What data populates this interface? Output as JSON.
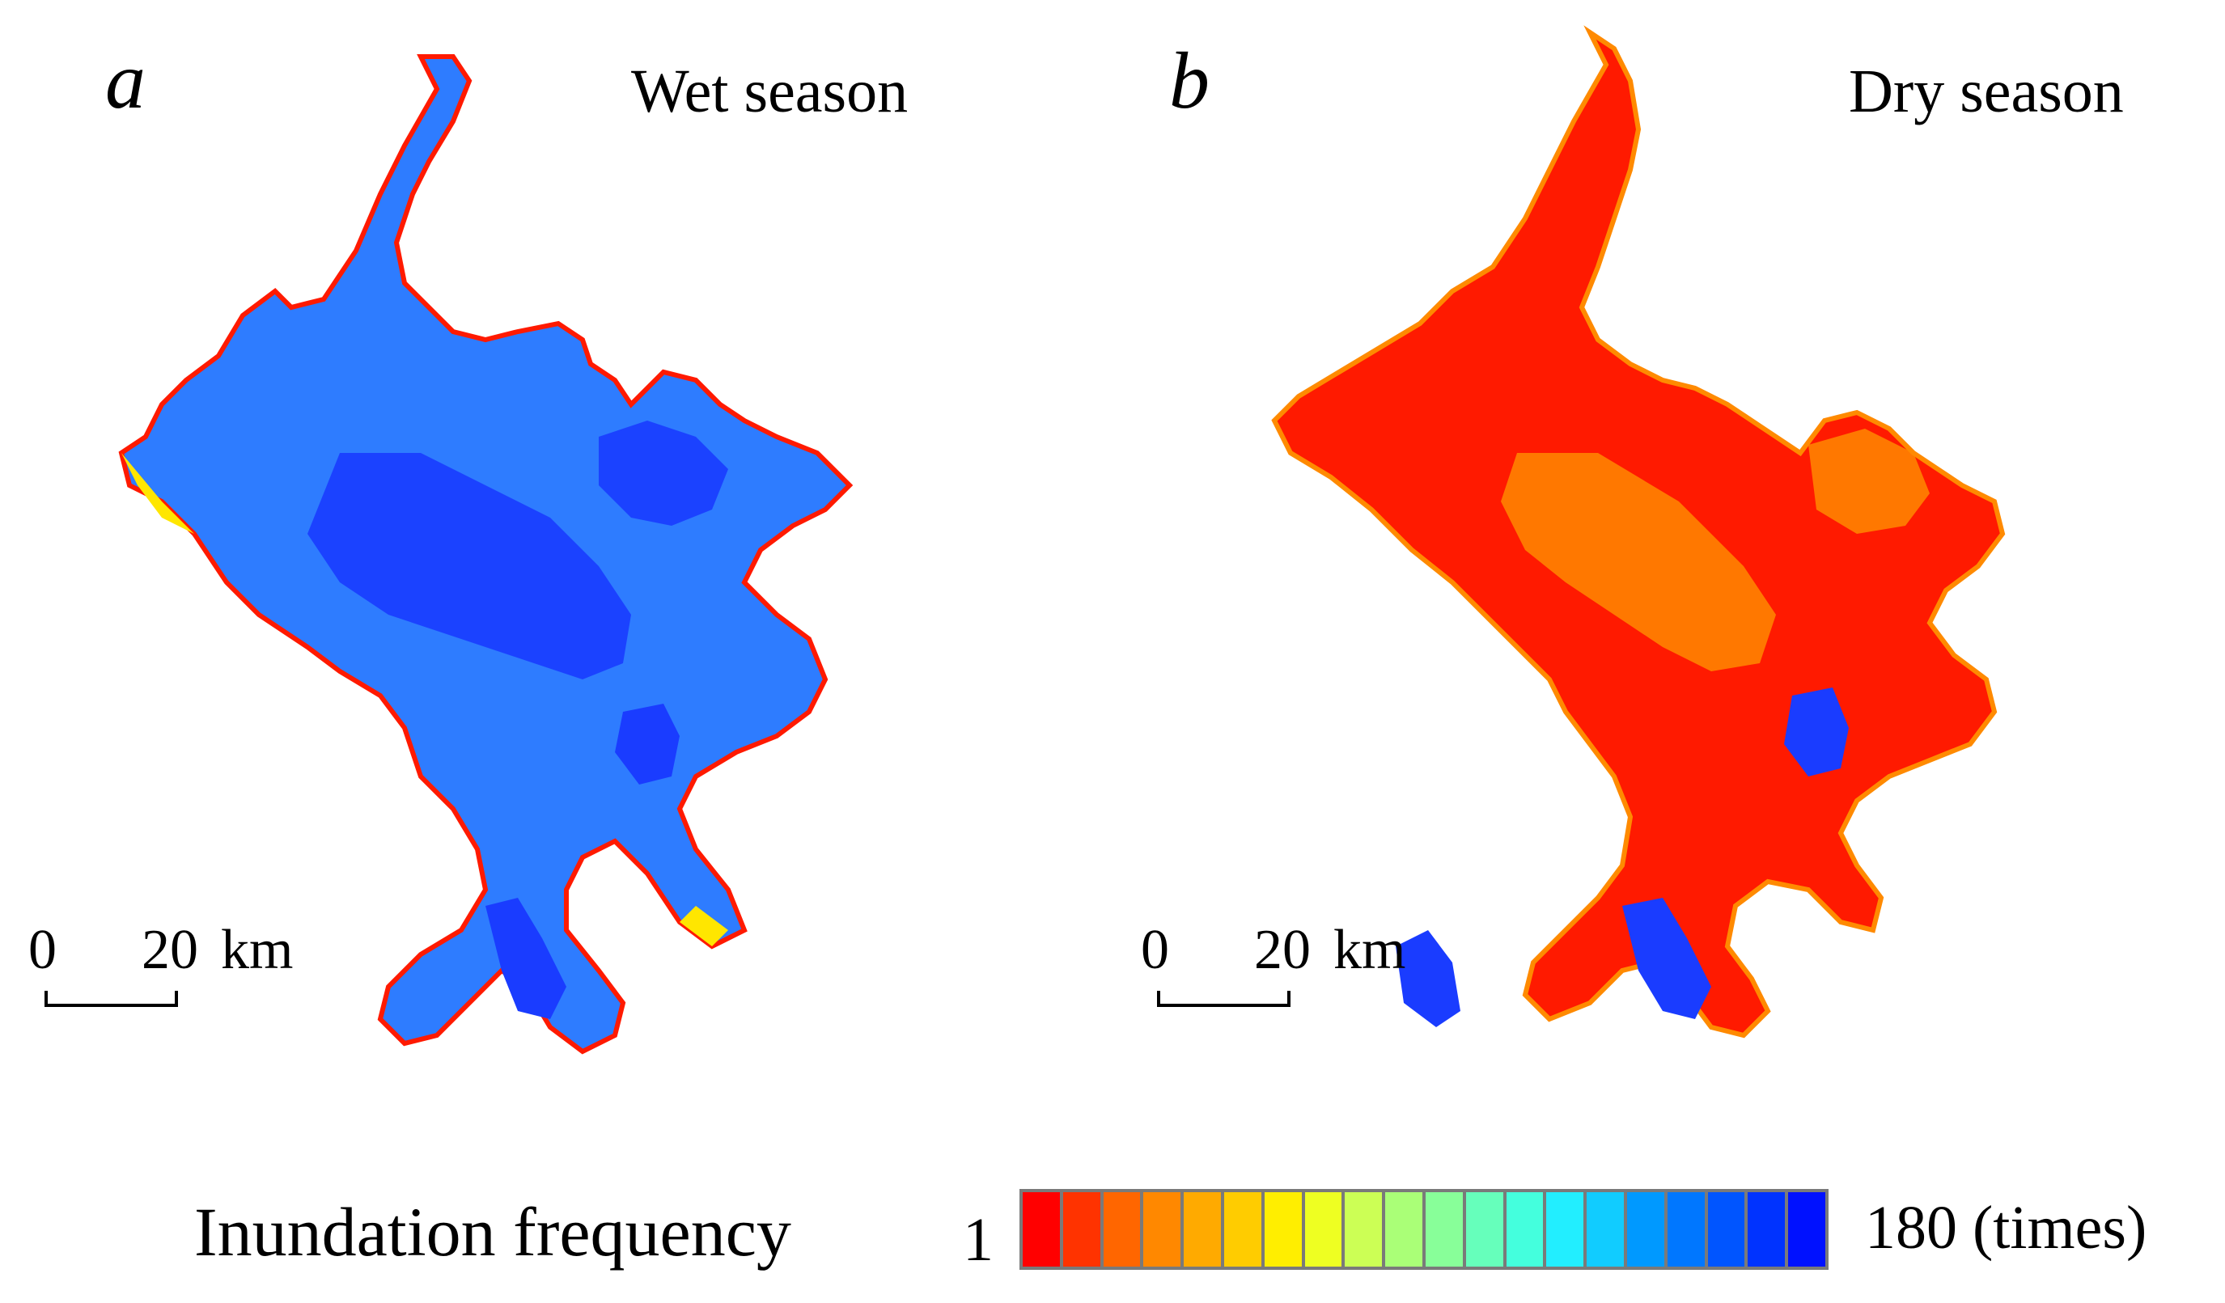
{
  "panels": [
    {
      "letter": "a",
      "title": "Wet season"
    },
    {
      "letter": "b",
      "title": "Dry season"
    }
  ],
  "scalebar": {
    "start": "0",
    "end": "20",
    "unit": "km"
  },
  "legend": {
    "title": "Inundation frequency",
    "min_label": "1",
    "max_label": "180 (times)",
    "colors": [
      "#ff0000",
      "#ff3300",
      "#ff6600",
      "#ff8800",
      "#ffaa00",
      "#ffcc00",
      "#ffee00",
      "#eeff22",
      "#ccff55",
      "#aaff77",
      "#88ff99",
      "#66ffbb",
      "#44ffdd",
      "#22eeff",
      "#11ccff",
      "#0099ff",
      "#0077ff",
      "#0055ff",
      "#0033ff",
      "#0011ff"
    ]
  },
  "palette": {
    "deep": "#1a3cff",
    "mid": "#2e7cff",
    "light": "#35c8ff",
    "green": "#9bff6a",
    "yellow": "#ffe600",
    "orange": "#ff8a00",
    "red": "#ff1a00"
  }
}
